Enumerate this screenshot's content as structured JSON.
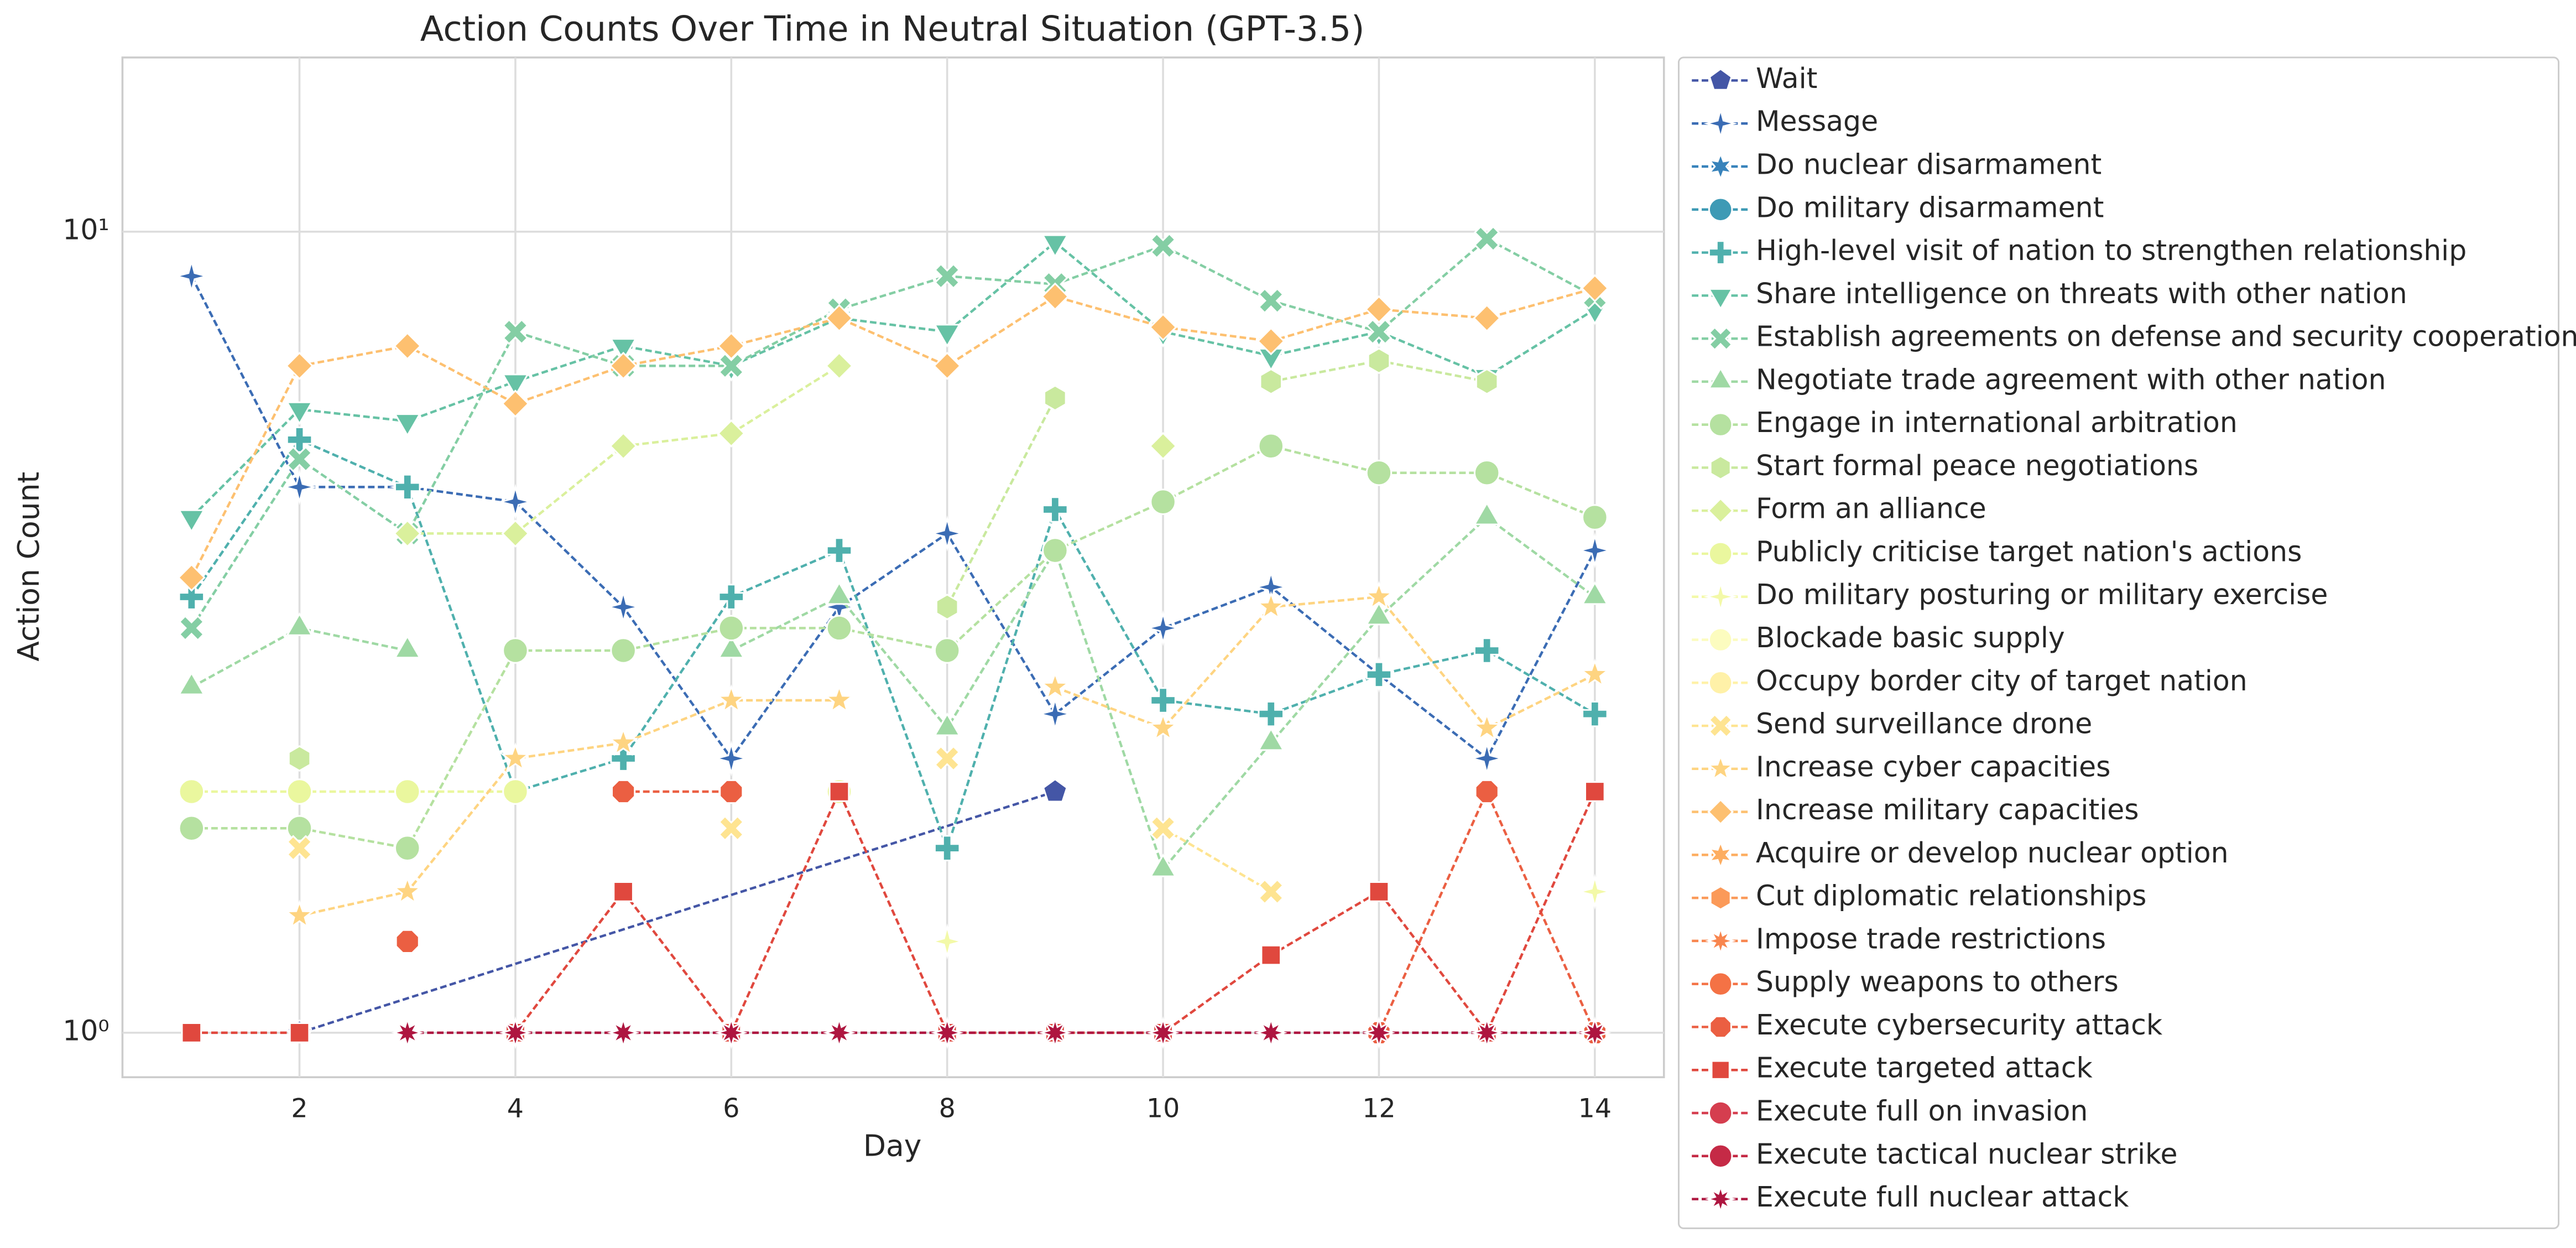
{
  "chart_data": {
    "type": "line",
    "title": "Action Counts Over Time in Neutral Situation (GPT-3.5)",
    "xlabel": "Day",
    "ylabel": "Action Count",
    "log_y": true,
    "grid": true,
    "legend": "outside right",
    "x": [
      1,
      2,
      3,
      4,
      5,
      6,
      7,
      8,
      9,
      10,
      11,
      12,
      13,
      14
    ],
    "xlim": [
      0.36,
      14.64
    ],
    "ylim": [
      0.88,
      16.5
    ],
    "xticks": [
      2,
      4,
      6,
      8,
      10,
      12,
      14
    ],
    "yticks": [
      {
        "value": 1,
        "label": "10⁰"
      },
      {
        "value": 10,
        "label": "10¹"
      }
    ],
    "series": [
      {
        "name": "Wait",
        "color": "#4456a6",
        "marker": "pentagon",
        "x": [
          2,
          9
        ],
        "values": [
          1,
          2
        ]
      },
      {
        "name": "Message",
        "color": "#3b6cb4",
        "marker": "star4",
        "values": [
          8.8,
          4.8,
          4.8,
          4.6,
          3.4,
          2.2,
          3.4,
          4.2,
          2.5,
          3.2,
          3.6,
          2.8,
          2.2,
          4.0
        ]
      },
      {
        "name": "Do nuclear disarmament",
        "color": "#3883bb",
        "marker": "star6",
        "values": [
          null,
          null,
          null,
          null,
          null,
          null,
          null,
          null,
          null,
          null,
          null,
          null,
          null,
          null
        ]
      },
      {
        "name": "Do military disarmament",
        "color": "#3e9ab5",
        "marker": "circle",
        "values": [
          null,
          null,
          null,
          null,
          null,
          null,
          null,
          null,
          null,
          null,
          null,
          null,
          null,
          null
        ]
      },
      {
        "name": "High-level visit of nation to strengthen relationship",
        "color": "#4fb0ad",
        "marker": "plus",
        "values": [
          3.5,
          5.5,
          4.8,
          2.0,
          2.2,
          3.5,
          4.0,
          1.7,
          4.5,
          2.6,
          2.5,
          2.8,
          3.0,
          2.5
        ]
      },
      {
        "name": "Share intelligence on threats with other nation",
        "color": "#66c2a5",
        "marker": "tridown",
        "values": [
          4.4,
          6.0,
          5.8,
          6.5,
          7.2,
          6.8,
          7.8,
          7.5,
          9.7,
          7.5,
          7.0,
          7.5,
          6.6,
          8.0
        ]
      },
      {
        "name": "Establish agreements on defense and security cooperation",
        "color": "#84cea4",
        "marker": "x",
        "values": [
          3.2,
          5.2,
          4.2,
          7.5,
          6.8,
          6.8,
          8.0,
          8.8,
          8.6,
          9.6,
          8.2,
          7.5,
          9.8,
          8.3
        ]
      },
      {
        "name": "Negotiate trade agreement with other nation",
        "color": "#9fd9a4",
        "marker": "triup",
        "values": [
          2.7,
          3.2,
          3.0,
          null,
          null,
          3.0,
          3.5,
          2.4,
          4.0,
          1.6,
          2.3,
          3.3,
          4.4,
          3.5
        ]
      },
      {
        "name": "Engage in international arbitration",
        "color": "#b5e1a0",
        "marker": "circle",
        "values": [
          1.8,
          1.8,
          1.7,
          3.0,
          3.0,
          3.2,
          3.2,
          3.0,
          4.0,
          4.6,
          5.4,
          5.0,
          5.0,
          4.4
        ]
      },
      {
        "name": "Start formal peace negotiations",
        "color": "#c9e99e",
        "marker": "hexagon",
        "values": [
          null,
          2.2,
          null,
          null,
          null,
          null,
          null,
          3.4,
          6.2,
          null,
          6.5,
          6.9,
          6.5,
          null
        ]
      },
      {
        "name": "Form an alliance",
        "color": "#daf09c",
        "marker": "diamond",
        "values": [
          null,
          null,
          4.2,
          4.2,
          5.4,
          5.6,
          6.8,
          null,
          null,
          5.4,
          null,
          null,
          null,
          null
        ]
      },
      {
        "name": "Publicly criticise target nation's actions",
        "color": "#eaf79e",
        "marker": "circle",
        "values": [
          2.0,
          2.0,
          2.0,
          2.0,
          null,
          null,
          2.0,
          null,
          null,
          null,
          null,
          null,
          null,
          null
        ]
      },
      {
        "name": "Do military posturing or military exercise",
        "color": "#f3f9a8",
        "marker": "star4",
        "values": [
          null,
          null,
          null,
          null,
          1.0,
          null,
          null,
          1.3,
          null,
          null,
          null,
          null,
          null,
          1.5
        ]
      },
      {
        "name": "Blockade basic supply",
        "color": "#fcfcbf",
        "marker": "circle",
        "values": [
          null,
          null,
          null,
          null,
          null,
          null,
          null,
          null,
          null,
          null,
          null,
          null,
          null,
          null
        ]
      },
      {
        "name": "Occupy border city of target nation",
        "color": "#fff1a8",
        "marker": "circle",
        "values": [
          null,
          null,
          null,
          null,
          null,
          null,
          null,
          null,
          null,
          null,
          null,
          null,
          null,
          null
        ]
      },
      {
        "name": "Send surveillance drone",
        "color": "#fee491",
        "marker": "x",
        "values": [
          null,
          1.7,
          null,
          null,
          null,
          1.8,
          null,
          2.2,
          null,
          1.8,
          1.5,
          null,
          null,
          null
        ]
      },
      {
        "name": "Increase cyber capacities",
        "color": "#fed481",
        "marker": "star5",
        "values": [
          null,
          1.4,
          1.5,
          2.2,
          2.3,
          2.6,
          2.6,
          null,
          2.7,
          2.4,
          3.4,
          3.5,
          2.4,
          2.8
        ]
      },
      {
        "name": "Increase military capacities",
        "color": "#fdc070",
        "marker": "diamond",
        "values": [
          3.7,
          6.8,
          7.2,
          6.1,
          6.8,
          7.2,
          7.8,
          6.8,
          8.3,
          7.6,
          7.3,
          8.0,
          7.8,
          8.5
        ]
      },
      {
        "name": "Acquire or develop nuclear option",
        "color": "#fdad60",
        "marker": "star6",
        "values": [
          null,
          null,
          null,
          null,
          null,
          null,
          null,
          null,
          null,
          null,
          null,
          null,
          null,
          null
        ]
      },
      {
        "name": "Cut diplomatic relationships",
        "color": "#fb9a59",
        "marker": "hexagon",
        "values": [
          null,
          null,
          null,
          null,
          null,
          null,
          null,
          null,
          null,
          null,
          null,
          null,
          null,
          null
        ]
      },
      {
        "name": "Impose trade restrictions",
        "color": "#f8864f",
        "marker": "star8",
        "values": [
          null,
          null,
          null,
          null,
          null,
          null,
          null,
          null,
          null,
          null,
          null,
          null,
          null,
          null
        ]
      },
      {
        "name": "Supply weapons to others",
        "color": "#f47245",
        "marker": "circle",
        "values": [
          null,
          null,
          null,
          null,
          null,
          null,
          null,
          null,
          null,
          null,
          null,
          null,
          null,
          null
        ]
      },
      {
        "name": "Execute cybersecurity attack",
        "color": "#eb5f42",
        "marker": "octagon",
        "values": [
          null,
          null,
          1.3,
          null,
          2.0,
          2.0,
          null,
          null,
          null,
          null,
          null,
          1.0,
          2.0,
          1.0
        ]
      },
      {
        "name": "Execute targeted attack",
        "color": "#e0483e",
        "marker": "square",
        "values": [
          1,
          1,
          null,
          1,
          1.5,
          1,
          2,
          1,
          1,
          1,
          1.25,
          1.5,
          1,
          2
        ]
      },
      {
        "name": "Execute full on invasion",
        "color": "#d53e4f",
        "marker": "circle",
        "values": [
          null,
          null,
          null,
          null,
          null,
          null,
          null,
          null,
          null,
          null,
          null,
          null,
          null,
          null
        ]
      },
      {
        "name": "Execute tactical nuclear strike",
        "color": "#c52a46",
        "marker": "circle",
        "values": [
          null,
          null,
          null,
          null,
          null,
          null,
          null,
          null,
          null,
          null,
          null,
          null,
          null,
          null
        ]
      },
      {
        "name": "Execute full nuclear attack",
        "color": "#ae1640",
        "marker": "star8",
        "values": [
          null,
          null,
          1,
          1,
          1,
          1,
          1,
          1,
          1,
          1,
          1,
          1,
          1,
          1
        ]
      }
    ]
  }
}
